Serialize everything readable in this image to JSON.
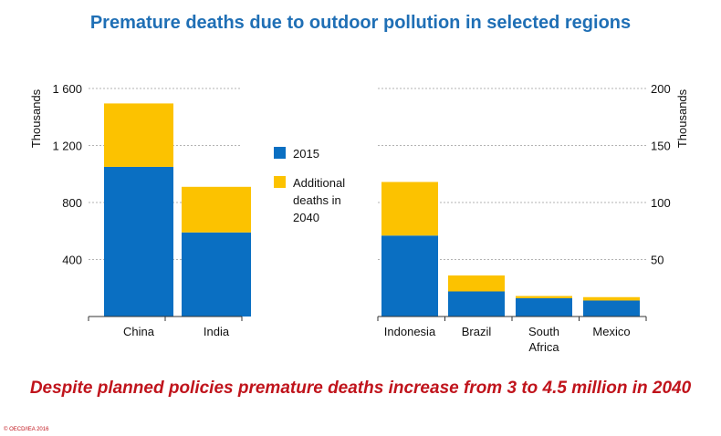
{
  "title": "Premature deaths due to outdoor pollution in selected regions",
  "headline": "Despite planned policies premature deaths increase from 3 to 4.5 million in 2040",
  "copyright": "© OECD/IEA 2016",
  "colors": {
    "series_2015": "#0a6fc2",
    "series_additional": "#fcc200",
    "title": "#1f6fb5",
    "headline": "#c0141c",
    "grid": "#9a9a9a"
  },
  "legend": {
    "placement": "center",
    "items": [
      {
        "label_lines": [
          "2015"
        ]
      },
      {
        "label_lines": [
          "Additional",
          "deaths in",
          "2040"
        ]
      }
    ]
  },
  "chart_data": [
    {
      "type": "bar",
      "stacked": true,
      "categories": [
        [
          "China"
        ],
        [
          "India"
        ]
      ],
      "series": [
        {
          "name": "2015",
          "values": [
            1050,
            590
          ]
        },
        {
          "name": "Additional deaths in 2040",
          "values": [
            445,
            320
          ]
        }
      ],
      "ylabel": "Thousands",
      "ylabel_side": "left",
      "ylim": [
        0,
        1600
      ],
      "yticks": [
        400,
        800,
        1200,
        1600
      ],
      "ytick_labels": [
        "400",
        "800",
        "1 200",
        "1 600"
      ],
      "grid": true
    },
    {
      "type": "bar",
      "stacked": true,
      "categories": [
        [
          "Indonesia"
        ],
        [
          "Brazil"
        ],
        [
          "South",
          "Africa"
        ],
        [
          "Mexico"
        ]
      ],
      "series": [
        {
          "name": "2015",
          "values": [
            71,
            22,
            16,
            14
          ]
        },
        {
          "name": "Additional deaths in 2040",
          "values": [
            47,
            14,
            2,
            3
          ]
        }
      ],
      "ylabel": "Thousands",
      "ylabel_side": "right",
      "ylim": [
        0,
        200
      ],
      "yticks": [
        50,
        100,
        150,
        200
      ],
      "ytick_labels": [
        "50",
        "100",
        "150",
        "200"
      ],
      "grid": true
    }
  ]
}
